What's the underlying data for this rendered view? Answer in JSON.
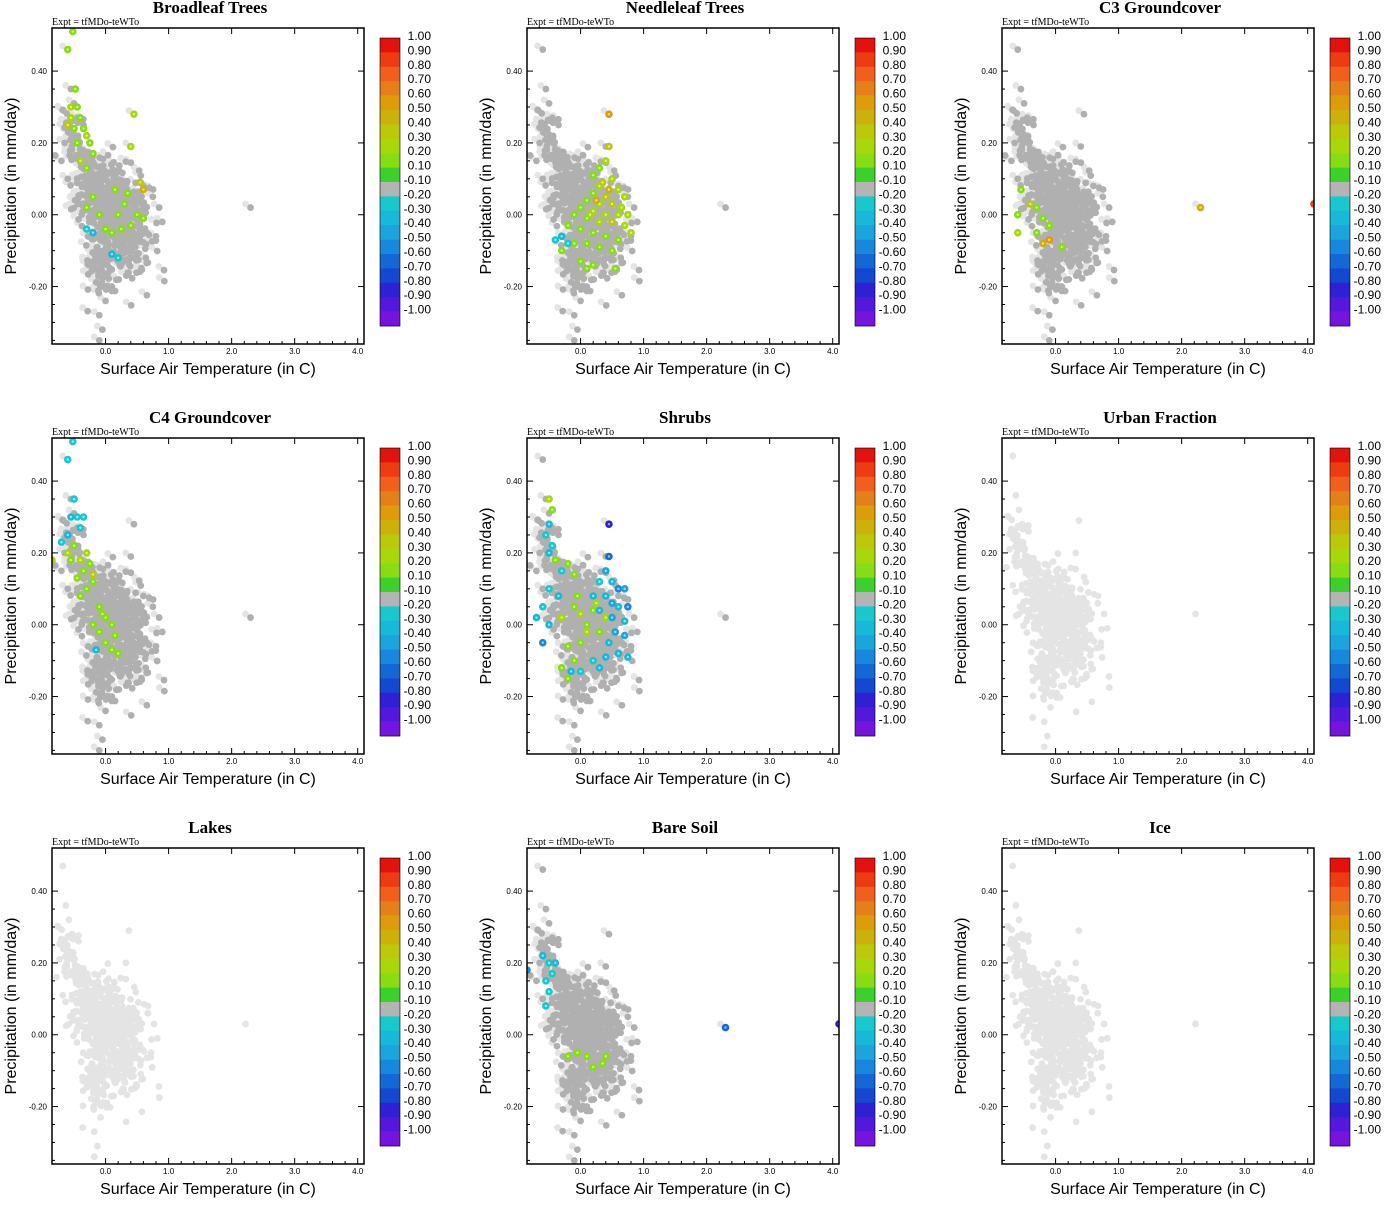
{
  "figure": {
    "expt_label": "Expt = tfMDo-teWTo",
    "xlabel": "Surface Air Temperature (in C)",
    "ylabel": "Precipitation (in mm/day)"
  },
  "chart_data": [
    {
      "type": "scatter",
      "title": "Broadleaf Trees",
      "xlabel": "Surface Air Temperature (in C)",
      "ylabel": "Precipitation (in mm/day)",
      "xlim": [
        -0.85,
        4.1
      ],
      "ylim": [
        -0.36,
        0.52
      ],
      "highlights": [
        [
          -0.6,
          0.46,
          0.2
        ],
        [
          -0.52,
          0.51,
          0.2
        ],
        [
          -0.48,
          0.35,
          0.2
        ],
        [
          -0.55,
          0.3,
          0.3
        ],
        [
          -0.45,
          0.3,
          0.2
        ],
        [
          -0.6,
          0.25,
          0.4
        ],
        [
          -0.55,
          0.27,
          0.3
        ],
        [
          -0.5,
          0.24,
          0.2
        ],
        [
          -0.4,
          0.27,
          0.2
        ],
        [
          -0.35,
          0.24,
          0.2
        ],
        [
          -0.3,
          0.22,
          0.3
        ],
        [
          -0.25,
          0.2,
          0.2
        ],
        [
          -0.2,
          0.17,
          0.2
        ],
        [
          -0.45,
          0.2,
          0.2
        ],
        [
          -0.3,
          0.13,
          0.2
        ],
        [
          -0.4,
          0.15,
          0.3
        ],
        [
          0.45,
          0.28,
          0.3
        ],
        [
          0.4,
          0.19,
          0.3
        ],
        [
          0.55,
          0.09,
          0.4
        ],
        [
          0.6,
          0.07,
          0.5
        ],
        [
          0.15,
          0.07,
          0.2
        ],
        [
          0.3,
          0.03,
          0.2
        ],
        [
          0.2,
          0.0,
          0.2
        ],
        [
          -0.1,
          0.0,
          0.2
        ],
        [
          0.0,
          -0.04,
          0.2
        ],
        [
          0.1,
          -0.05,
          0.2
        ],
        [
          0.25,
          -0.04,
          0.2
        ],
        [
          0.4,
          -0.03,
          0.2
        ],
        [
          0.5,
          0.0,
          0.2
        ],
        [
          0.6,
          -0.01,
          0.2
        ],
        [
          -0.3,
          0.02,
          0.2
        ],
        [
          -0.2,
          0.05,
          0.2
        ],
        [
          0.35,
          0.06,
          0.2
        ],
        [
          -0.3,
          -0.04,
          -0.2
        ],
        [
          -0.2,
          -0.05,
          -0.3
        ],
        [
          0.1,
          -0.11,
          -0.3
        ],
        [
          0.2,
          -0.12,
          -0.2
        ]
      ]
    },
    {
      "type": "scatter",
      "title": "Needleleaf Trees",
      "xlabel": "Surface Air Temperature (in C)",
      "ylabel": "Precipitation (in mm/day)",
      "xlim": [
        -0.85,
        4.1
      ],
      "ylim": [
        -0.36,
        0.52
      ],
      "highlights": [
        [
          0.45,
          0.28,
          0.6
        ],
        [
          0.45,
          0.19,
          0.4
        ],
        [
          0.4,
          0.15,
          0.3
        ],
        [
          0.3,
          0.13,
          0.2
        ],
        [
          0.2,
          0.11,
          0.2
        ],
        [
          0.5,
          0.1,
          0.3
        ],
        [
          0.3,
          0.08,
          0.3
        ],
        [
          0.6,
          0.07,
          0.3
        ],
        [
          0.2,
          0.06,
          0.2
        ],
        [
          0.4,
          0.05,
          0.4
        ],
        [
          0.7,
          0.05,
          0.3
        ],
        [
          0.1,
          0.04,
          0.2
        ],
        [
          0.3,
          0.03,
          0.3
        ],
        [
          0.5,
          0.03,
          0.4
        ],
        [
          0.65,
          0.02,
          0.3
        ],
        [
          0.0,
          0.02,
          0.2
        ],
        [
          0.2,
          0.01,
          0.3
        ],
        [
          0.4,
          0.0,
          0.3
        ],
        [
          0.6,
          0.0,
          0.3
        ],
        [
          0.75,
          0.0,
          0.3
        ],
        [
          -0.1,
          0.0,
          0.2
        ],
        [
          0.1,
          -0.01,
          0.2
        ],
        [
          0.3,
          -0.02,
          0.3
        ],
        [
          0.5,
          -0.02,
          0.4
        ],
        [
          0.7,
          -0.03,
          0.3
        ],
        [
          -0.2,
          -0.03,
          0.2
        ],
        [
          0.0,
          -0.04,
          0.2
        ],
        [
          0.2,
          -0.05,
          0.2
        ],
        [
          0.4,
          -0.06,
          0.2
        ],
        [
          0.6,
          -0.07,
          0.2
        ],
        [
          0.8,
          -0.05,
          0.3
        ],
        [
          -0.1,
          -0.08,
          0.2
        ],
        [
          0.1,
          -0.08,
          0.2
        ],
        [
          0.3,
          -0.09,
          0.2
        ],
        [
          0.5,
          -0.1,
          0.2
        ],
        [
          -0.3,
          -0.1,
          0.2
        ],
        [
          0.0,
          -0.13,
          0.2
        ],
        [
          0.2,
          -0.14,
          0.2
        ],
        [
          0.55,
          -0.15,
          0.2
        ],
        [
          0.1,
          -0.15,
          0.2
        ],
        [
          0.35,
          0.09,
          0.35
        ],
        [
          0.25,
          0.04,
          0.5
        ],
        [
          0.45,
          0.07,
          0.5
        ],
        [
          0.15,
          0.0,
          0.3
        ],
        [
          -0.4,
          -0.07,
          -0.2
        ],
        [
          -0.3,
          -0.06,
          -0.3
        ],
        [
          -0.2,
          -0.08,
          -0.2
        ]
      ]
    },
    {
      "type": "scatter",
      "title": "C3 Groundcover",
      "xlabel": "Surface Air Temperature (in C)",
      "ylabel": "Precipitation (in mm/day)",
      "xlim": [
        -0.85,
        4.1
      ],
      "ylim": [
        -0.36,
        0.52
      ],
      "highlights": [
        [
          4.1,
          0.03,
          0.9
        ],
        [
          2.3,
          0.02,
          0.5
        ],
        [
          -0.4,
          0.03,
          0.4
        ],
        [
          -0.3,
          0.02,
          0.2
        ],
        [
          -0.55,
          0.07,
          0.2
        ],
        [
          -0.6,
          0.0,
          0.2
        ],
        [
          -0.2,
          -0.01,
          0.2
        ],
        [
          -0.1,
          -0.03,
          0.2
        ],
        [
          -0.6,
          -0.05,
          0.3
        ],
        [
          -0.3,
          -0.05,
          0.2
        ],
        [
          -0.1,
          -0.07,
          0.6
        ],
        [
          -0.2,
          -0.08,
          0.5
        ],
        [
          0.1,
          -0.09,
          0.2
        ]
      ]
    },
    {
      "type": "scatter",
      "title": "C4 Groundcover",
      "xlabel": "Surface Air Temperature (in C)",
      "ylabel": "Precipitation (in mm/day)",
      "xlim": [
        -0.85,
        4.1
      ],
      "ylim": [
        -0.36,
        0.52
      ],
      "highlights": [
        [
          -0.6,
          0.46,
          -0.2
        ],
        [
          -0.52,
          0.51,
          -0.2
        ],
        [
          -0.5,
          0.35,
          -0.2
        ],
        [
          -0.45,
          0.3,
          -0.2
        ],
        [
          -0.55,
          0.3,
          -0.3
        ],
        [
          -0.35,
          0.3,
          -0.2
        ],
        [
          -0.6,
          0.25,
          -0.3
        ],
        [
          -0.4,
          0.27,
          -0.2
        ],
        [
          -0.7,
          0.23,
          -0.2
        ],
        [
          -0.6,
          0.2,
          0.3
        ],
        [
          -0.5,
          0.22,
          0.2
        ],
        [
          -0.4,
          0.18,
          0.3
        ],
        [
          -0.3,
          0.2,
          0.3
        ],
        [
          -0.35,
          0.15,
          0.2
        ],
        [
          -0.25,
          0.17,
          0.2
        ],
        [
          -0.2,
          0.12,
          0.2
        ],
        [
          -0.3,
          0.1,
          0.2
        ],
        [
          -0.45,
          0.13,
          0.2
        ],
        [
          -0.85,
          0.18,
          0.4
        ],
        [
          -0.55,
          0.18,
          0.2
        ],
        [
          -0.2,
          0.14,
          0.4
        ],
        [
          -0.4,
          0.08,
          0.2
        ],
        [
          -0.1,
          0.05,
          0.2
        ],
        [
          0.0,
          0.02,
          0.2
        ],
        [
          0.1,
          0.0,
          0.2
        ],
        [
          -0.1,
          -0.02,
          0.2
        ],
        [
          0.0,
          -0.05,
          0.2
        ],
        [
          0.1,
          -0.07,
          0.2
        ],
        [
          0.2,
          -0.08,
          0.2
        ],
        [
          -0.05,
          0.03,
          0.2
        ],
        [
          -0.15,
          -0.07,
          -0.3
        ],
        [
          -0.2,
          0.0,
          0.2
        ],
        [
          0.15,
          -0.03,
          0.2
        ]
      ]
    },
    {
      "type": "scatter",
      "title": "Shrubs",
      "xlabel": "Surface Air Temperature (in C)",
      "ylabel": "Precipitation (in mm/day)",
      "xlim": [
        -0.85,
        4.1
      ],
      "ylim": [
        -0.36,
        0.52
      ],
      "highlights": [
        [
          -0.5,
          0.35,
          0.3
        ],
        [
          -0.45,
          0.32,
          0.2
        ],
        [
          -0.5,
          0.28,
          -0.3
        ],
        [
          -0.55,
          0.25,
          -0.2
        ],
        [
          -0.45,
          0.22,
          -0.2
        ],
        [
          -0.5,
          0.2,
          -0.3
        ],
        [
          -0.4,
          0.18,
          0.2
        ],
        [
          -0.3,
          0.15,
          -0.2
        ],
        [
          -0.2,
          0.17,
          0.2
        ],
        [
          -0.1,
          0.14,
          0.2
        ],
        [
          -0.5,
          0.1,
          -0.2
        ],
        [
          -0.35,
          0.08,
          -0.3
        ],
        [
          -0.6,
          0.05,
          -0.2
        ],
        [
          -0.7,
          0.02,
          -0.3
        ],
        [
          -0.6,
          -0.05,
          -0.5
        ],
        [
          -0.5,
          0.0,
          -0.3
        ],
        [
          -0.3,
          0.02,
          0.3
        ],
        [
          -0.1,
          0.05,
          0.2
        ],
        [
          0.0,
          0.03,
          0.3
        ],
        [
          0.1,
          0.0,
          0.2
        ],
        [
          0.2,
          0.04,
          0.2
        ],
        [
          0.3,
          -0.02,
          0.2
        ],
        [
          0.4,
          0.02,
          0.3
        ],
        [
          0.0,
          -0.05,
          0.2
        ],
        [
          -0.2,
          -0.06,
          0.2
        ],
        [
          -0.1,
          -0.1,
          0.2
        ],
        [
          -0.3,
          -0.12,
          0.2
        ],
        [
          -0.2,
          -0.15,
          0.2
        ],
        [
          0.45,
          0.28,
          -0.8
        ],
        [
          0.45,
          0.19,
          -0.6
        ],
        [
          0.4,
          0.15,
          -0.4
        ],
        [
          0.5,
          0.12,
          -0.3
        ],
        [
          0.3,
          0.12,
          -0.2
        ],
        [
          0.6,
          0.1,
          -0.5
        ],
        [
          0.7,
          0.1,
          -0.4
        ],
        [
          0.2,
          0.08,
          -0.3
        ],
        [
          0.4,
          0.08,
          -0.3
        ],
        [
          0.5,
          0.06,
          -0.4
        ],
        [
          0.6,
          0.05,
          -0.3
        ],
        [
          0.75,
          0.05,
          -0.5
        ],
        [
          0.3,
          0.04,
          -0.3
        ],
        [
          0.5,
          0.02,
          -0.4
        ],
        [
          0.7,
          0.01,
          -0.3
        ],
        [
          0.55,
          -0.02,
          -0.4
        ],
        [
          0.7,
          -0.03,
          -0.4
        ],
        [
          0.45,
          -0.05,
          -0.3
        ],
        [
          0.6,
          -0.08,
          -0.3
        ],
        [
          0.75,
          -0.09,
          -0.3
        ],
        [
          0.4,
          -0.09,
          -0.3
        ],
        [
          0.2,
          -0.1,
          -0.2
        ],
        [
          0.3,
          -0.12,
          -0.3
        ],
        [
          0.0,
          -0.13,
          -0.2
        ],
        [
          -0.15,
          -0.13,
          -0.3
        ],
        [
          0.1,
          -0.02,
          0.3
        ],
        [
          0.25,
          0.06,
          0.3
        ],
        [
          -0.05,
          0.08,
          0.2
        ]
      ]
    },
    {
      "type": "scatter",
      "title": "Urban Fraction",
      "xlabel": "Surface Air Temperature (in C)",
      "ylabel": "Precipitation (in mm/day)",
      "xlim": [
        -0.85,
        4.1
      ],
      "ylim": [
        -0.36,
        0.52
      ],
      "highlights": []
    },
    {
      "type": "scatter",
      "title": "Lakes",
      "xlabel": "Surface Air Temperature (in C)",
      "ylabel": "Precipitation (in mm/day)",
      "xlim": [
        -0.85,
        4.1
      ],
      "ylim": [
        -0.36,
        0.52
      ],
      "highlights": []
    },
    {
      "type": "scatter",
      "title": "Bare Soil",
      "xlabel": "Surface Air Temperature (in C)",
      "ylabel": "Precipitation (in mm/day)",
      "xlim": [
        -0.85,
        4.1
      ],
      "ylim": [
        -0.36,
        0.52
      ],
      "highlights": [
        [
          -0.85,
          0.18,
          -0.5
        ],
        [
          -0.6,
          0.22,
          -0.3
        ],
        [
          -0.5,
          0.2,
          -0.2
        ],
        [
          -0.45,
          0.17,
          -0.2
        ],
        [
          -0.4,
          0.2,
          -0.3
        ],
        [
          -0.55,
          0.15,
          -0.2
        ],
        [
          -0.5,
          0.12,
          -0.2
        ],
        [
          -0.55,
          0.08,
          -0.2
        ],
        [
          2.3,
          0.02,
          -0.6
        ],
        [
          4.1,
          0.03,
          -0.8
        ],
        [
          -0.2,
          -0.06,
          0.2
        ],
        [
          -0.05,
          -0.05,
          0.2
        ],
        [
          0.1,
          -0.06,
          0.2
        ],
        [
          0.2,
          -0.09,
          0.2
        ],
        [
          0.35,
          -0.08,
          0.2
        ],
        [
          0.4,
          -0.06,
          0.2
        ]
      ]
    },
    {
      "type": "scatter",
      "title": "Ice",
      "xlabel": "Surface Air Temperature (in C)",
      "ylabel": "Precipitation (in mm/day)",
      "xlim": [
        -0.85,
        4.1
      ],
      "ylim": [
        -0.36,
        0.52
      ],
      "highlights": []
    }
  ],
  "background_points": {
    "outliers": [
      [
        -0.6,
        0.46
      ],
      [
        -0.55,
        0.35
      ],
      [
        -0.5,
        0.31
      ],
      [
        -0.45,
        0.27
      ],
      [
        -0.35,
        0.25
      ],
      [
        -0.65,
        0.2
      ],
      [
        0.45,
        0.28
      ],
      [
        0.4,
        0.19
      ],
      [
        -0.1,
        -0.28
      ],
      [
        -0.05,
        -0.32
      ],
      [
        -0.1,
        -0.35
      ],
      [
        0.0,
        -0.24
      ],
      [
        0.1,
        -0.2
      ],
      [
        2.3,
        0.02
      ],
      [
        0.6,
        0.08
      ],
      [
        0.75,
        0.05
      ],
      [
        0.85,
        0.02
      ],
      [
        0.9,
        -0.02
      ],
      [
        0.8,
        -0.06
      ],
      [
        -0.7,
        0.15
      ],
      [
        -0.6,
        0.1
      ]
    ]
  },
  "colorbar": {
    "ticks": [
      "1.00",
      "0.90",
      "0.80",
      "0.70",
      "0.60",
      "0.50",
      "0.40",
      "0.30",
      "0.20",
      "0.10",
      "-0.10",
      "-0.20",
      "-0.30",
      "-0.40",
      "-0.50",
      "-0.60",
      "-0.70",
      "-0.80",
      "-0.90",
      "-1.00"
    ],
    "colors": [
      "#e2130f",
      "#ee3c12",
      "#f0601c",
      "#e4801a",
      "#dc9c0c",
      "#ccb00c",
      "#bcc80c",
      "#a8d80c",
      "#88dc14",
      "#3cd02c",
      "#b4b4b4",
      "#18c8cc",
      "#18b8d8",
      "#1ca4dc",
      "#1888dc",
      "#1468d4",
      "#1448d0",
      "#3020d4",
      "#5418dc",
      "#7414dc"
    ]
  },
  "xticks": [
    "0.0",
    "1.0",
    "2.0",
    "3.0",
    "4.0"
  ],
  "yticks": [
    "0.40",
    "0.20",
    "0.00",
    "-0.20"
  ]
}
